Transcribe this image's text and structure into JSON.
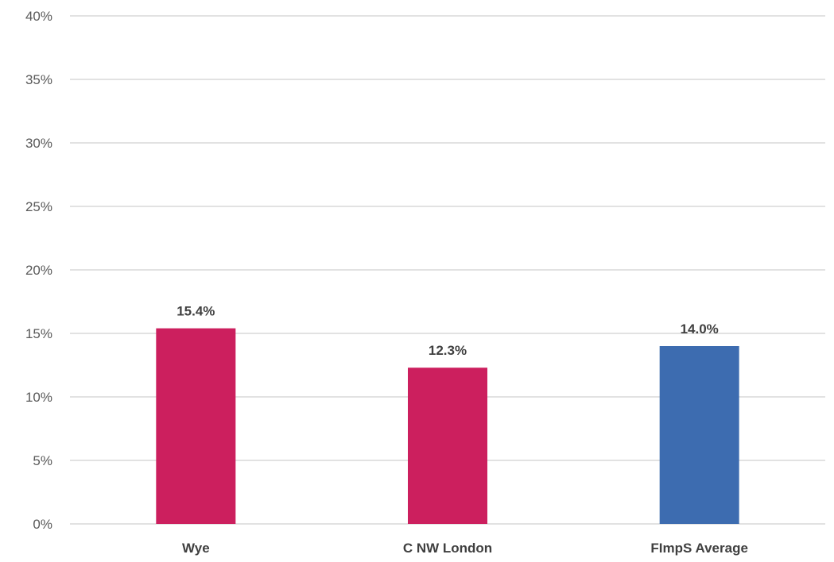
{
  "chart_data": {
    "type": "bar",
    "title": "",
    "xlabel": "",
    "ylabel": "",
    "categories": [
      "Wye",
      "C NW London",
      "FImpS Average"
    ],
    "values": [
      15.4,
      12.3,
      14.0
    ],
    "data_labels": [
      "15.4%",
      "12.3%",
      "14.0%"
    ],
    "bar_colors": [
      "#cc1f5e",
      "#cc1f5e",
      "#3d6cb0"
    ],
    "ylim": [
      0,
      40
    ],
    "yticks": [
      0,
      5,
      10,
      15,
      20,
      25,
      30,
      35,
      40
    ],
    "ytick_labels": [
      "0%",
      "5%",
      "10%",
      "15%",
      "20%",
      "25%",
      "30%",
      "35%",
      "40%"
    ],
    "grid": true,
    "legend": "none"
  }
}
